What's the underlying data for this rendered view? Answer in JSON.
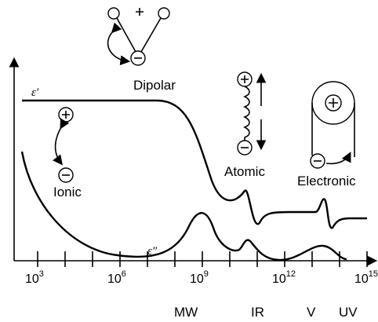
{
  "labels": {
    "epsilon_prime": "ε′",
    "epsilon_double_prime": "ε″",
    "dipolar": "Dipolar",
    "ionic": "Ionic",
    "atomic": "Atomic",
    "electronic": "Electronic"
  },
  "x_ticks": [
    {
      "base": "10",
      "exponent": "3"
    },
    {
      "base": "10",
      "exponent": "6"
    },
    {
      "base": "10",
      "exponent": "9"
    },
    {
      "base": "10",
      "exponent": "12"
    },
    {
      "base": "10",
      "exponent": "15"
    }
  ],
  "bands": [
    "MW",
    "IR",
    "V",
    "UV"
  ]
}
